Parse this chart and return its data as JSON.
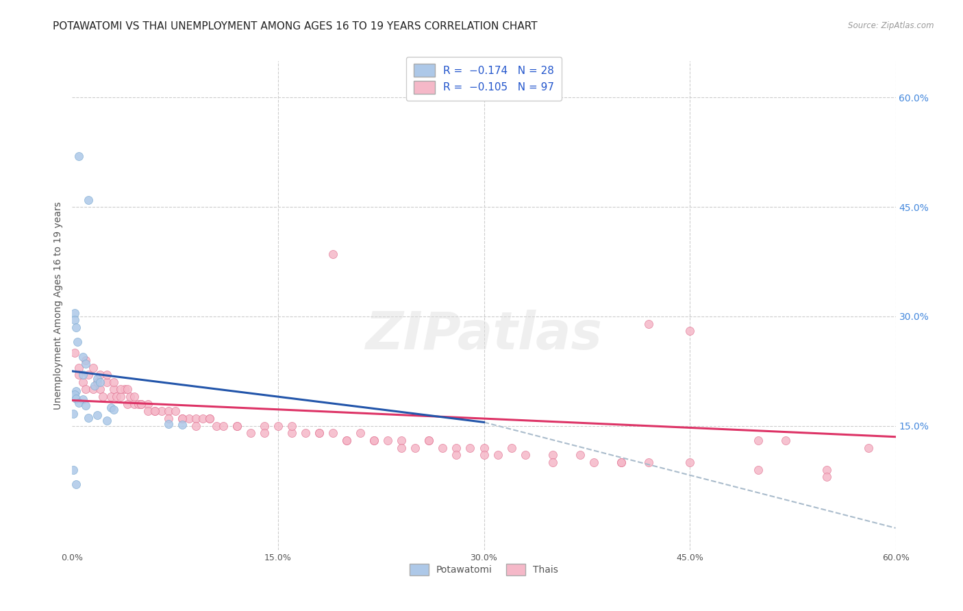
{
  "title": "POTAWATOMI VS THAI UNEMPLOYMENT AMONG AGES 16 TO 19 YEARS CORRELATION CHART",
  "source": "Source: ZipAtlas.com",
  "ylabel": "Unemployment Among Ages 16 to 19 years",
  "xlim": [
    0.0,
    0.6
  ],
  "ylim": [
    -0.02,
    0.65
  ],
  "background_color": "#ffffff",
  "grid_color": "#cccccc",
  "potawatomi_color": "#adc8e8",
  "potawatomi_edge_color": "#7aaad0",
  "thai_color": "#f5b8c8",
  "thai_edge_color": "#e07090",
  "potawatomi_line_color": "#2255aa",
  "thai_line_color": "#dd3366",
  "dashed_line_color": "#aabccc",
  "marker_size": 75,
  "title_fontsize": 11,
  "axis_label_fontsize": 10,
  "tick_fontsize": 9,
  "legend_fontsize": 10,
  "pot_x": [
    0.005,
    0.012,
    0.002,
    0.002,
    0.003,
    0.004,
    0.008,
    0.01,
    0.018,
    0.016,
    0.003,
    0.002,
    0.003,
    0.008,
    0.005,
    0.01,
    0.028,
    0.03,
    0.001,
    0.018,
    0.012,
    0.025,
    0.07,
    0.08,
    0.008,
    0.02,
    0.001,
    0.003
  ],
  "pot_y": [
    0.52,
    0.46,
    0.305,
    0.295,
    0.285,
    0.265,
    0.245,
    0.235,
    0.215,
    0.205,
    0.198,
    0.193,
    0.187,
    0.186,
    0.182,
    0.178,
    0.175,
    0.172,
    0.167,
    0.165,
    0.161,
    0.157,
    0.153,
    0.152,
    0.22,
    0.21,
    0.09,
    0.07
  ],
  "thai_x": [
    0.002,
    0.005,
    0.005,
    0.008,
    0.01,
    0.012,
    0.015,
    0.018,
    0.02,
    0.022,
    0.025,
    0.028,
    0.03,
    0.032,
    0.035,
    0.038,
    0.04,
    0.042,
    0.045,
    0.048,
    0.05,
    0.055,
    0.06,
    0.065,
    0.07,
    0.075,
    0.08,
    0.085,
    0.09,
    0.095,
    0.1,
    0.105,
    0.11,
    0.12,
    0.13,
    0.14,
    0.15,
    0.16,
    0.17,
    0.18,
    0.19,
    0.2,
    0.21,
    0.22,
    0.23,
    0.24,
    0.25,
    0.26,
    0.27,
    0.28,
    0.29,
    0.3,
    0.31,
    0.32,
    0.33,
    0.35,
    0.37,
    0.38,
    0.4,
    0.42,
    0.01,
    0.015,
    0.02,
    0.025,
    0.03,
    0.035,
    0.04,
    0.045,
    0.05,
    0.055,
    0.06,
    0.07,
    0.08,
    0.09,
    0.1,
    0.12,
    0.14,
    0.16,
    0.18,
    0.2,
    0.22,
    0.24,
    0.26,
    0.28,
    0.3,
    0.35,
    0.4,
    0.45,
    0.5,
    0.55,
    0.52,
    0.58,
    0.42,
    0.45,
    0.5,
    0.19,
    0.55
  ],
  "thai_y": [
    0.25,
    0.23,
    0.22,
    0.21,
    0.2,
    0.22,
    0.2,
    0.21,
    0.2,
    0.19,
    0.21,
    0.19,
    0.2,
    0.19,
    0.19,
    0.2,
    0.18,
    0.19,
    0.18,
    0.18,
    0.18,
    0.18,
    0.17,
    0.17,
    0.17,
    0.17,
    0.16,
    0.16,
    0.16,
    0.16,
    0.16,
    0.15,
    0.15,
    0.15,
    0.14,
    0.15,
    0.15,
    0.14,
    0.14,
    0.14,
    0.14,
    0.13,
    0.14,
    0.13,
    0.13,
    0.13,
    0.12,
    0.13,
    0.12,
    0.12,
    0.12,
    0.12,
    0.11,
    0.12,
    0.11,
    0.11,
    0.11,
    0.1,
    0.1,
    0.1,
    0.24,
    0.23,
    0.22,
    0.22,
    0.21,
    0.2,
    0.2,
    0.19,
    0.18,
    0.17,
    0.17,
    0.16,
    0.16,
    0.15,
    0.16,
    0.15,
    0.14,
    0.15,
    0.14,
    0.13,
    0.13,
    0.12,
    0.13,
    0.11,
    0.11,
    0.1,
    0.1,
    0.1,
    0.09,
    0.09,
    0.13,
    0.12,
    0.29,
    0.28,
    0.13,
    0.385,
    0.08
  ],
  "pot_line": {
    "x0": 0.0,
    "y0": 0.225,
    "x1": 0.3,
    "y1": 0.155
  },
  "thai_line": {
    "x0": 0.0,
    "y0": 0.185,
    "x1": 0.6,
    "y1": 0.135
  },
  "dash_line": {
    "x0": 0.3,
    "y0": 0.155,
    "x1": 0.6,
    "y1": 0.01
  }
}
